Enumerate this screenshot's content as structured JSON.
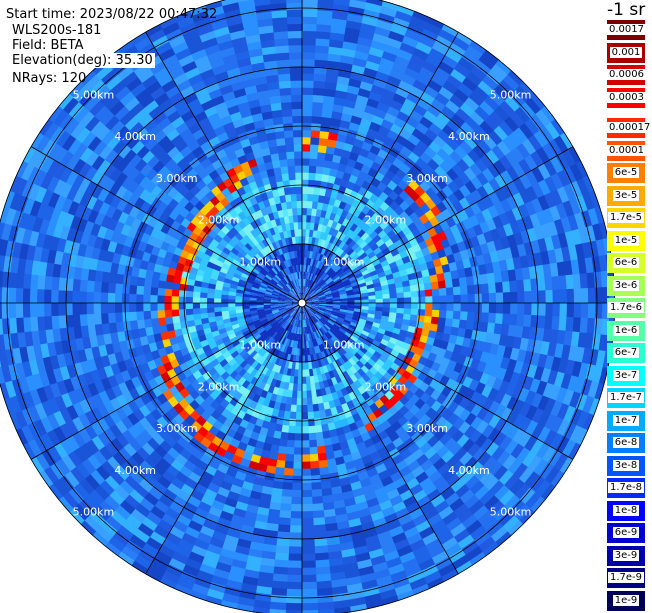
{
  "info": {
    "start_time": "Start time: 2023/08/22 00:47:32",
    "instrument": "WLS200s-181",
    "field": "Field: BETA",
    "elevation": "Elevation(deg): 35.30",
    "nrays": "NRays: 120"
  },
  "unit_label": "-1 sr",
  "colorbar_top": [
    {
      "label": "0.0017",
      "color": "#7a0000"
    },
    {
      "label": "0.001",
      "color": "#a80000"
    },
    {
      "label": "0.0006",
      "color": "#d40000"
    },
    {
      "label": "0.0003",
      "color": "#ff0000"
    }
  ],
  "colorbar_bottom": [
    {
      "label": "0.00017",
      "color": "#ff2a00"
    },
    {
      "label": "0.0001",
      "color": "#ff5500"
    },
    {
      "label": "6e-5",
      "color": "#ff8000"
    },
    {
      "label": "3e-5",
      "color": "#ffaa00"
    },
    {
      "label": "1.7e-5",
      "color": "#ffd400"
    },
    {
      "label": "1e-5",
      "color": "#ffff00"
    },
    {
      "label": "6e-6",
      "color": "#d4ff2a"
    },
    {
      "label": "3e-6",
      "color": "#aaff55"
    },
    {
      "label": "1.7e-6",
      "color": "#80ff80"
    },
    {
      "label": "1e-6",
      "color": "#55ffaa"
    },
    {
      "label": "6e-7",
      "color": "#2affd4"
    },
    {
      "label": "3e-7",
      "color": "#00ffff"
    },
    {
      "label": "1.7e-7",
      "color": "#00d4ff"
    },
    {
      "label": "1e-7",
      "color": "#00aaff"
    },
    {
      "label": "6e-8",
      "color": "#0080ff"
    },
    {
      "label": "3e-8",
      "color": "#0055ff"
    },
    {
      "label": "1.7e-8",
      "color": "#002aff"
    },
    {
      "label": "1e-8",
      "color": "#0000ff"
    },
    {
      "label": "6e-9",
      "color": "#0000d4"
    },
    {
      "label": "3e-9",
      "color": "#0000aa"
    },
    {
      "label": "1.7e-9",
      "color": "#000080"
    },
    {
      "label": "1e-9",
      "color": "#000055"
    }
  ],
  "chart_data": {
    "type": "heatmap",
    "projection": "polar",
    "field": "BETA",
    "range_rings_km": [
      1,
      2,
      3,
      4,
      5
    ],
    "ring_labels": [
      "1.00km",
      "2.00km",
      "3.00km",
      "4.00km",
      "5.00km"
    ],
    "max_range_km": 5.3,
    "azimuth_spokes": 12,
    "nrays": 120,
    "background_color": "#1e64e8",
    "aerosol_band": {
      "description_values": "enhanced backscatter arc",
      "range_km_min": 2.0,
      "range_km_max": 3.0,
      "peak_value": "0.0003"
    }
  }
}
